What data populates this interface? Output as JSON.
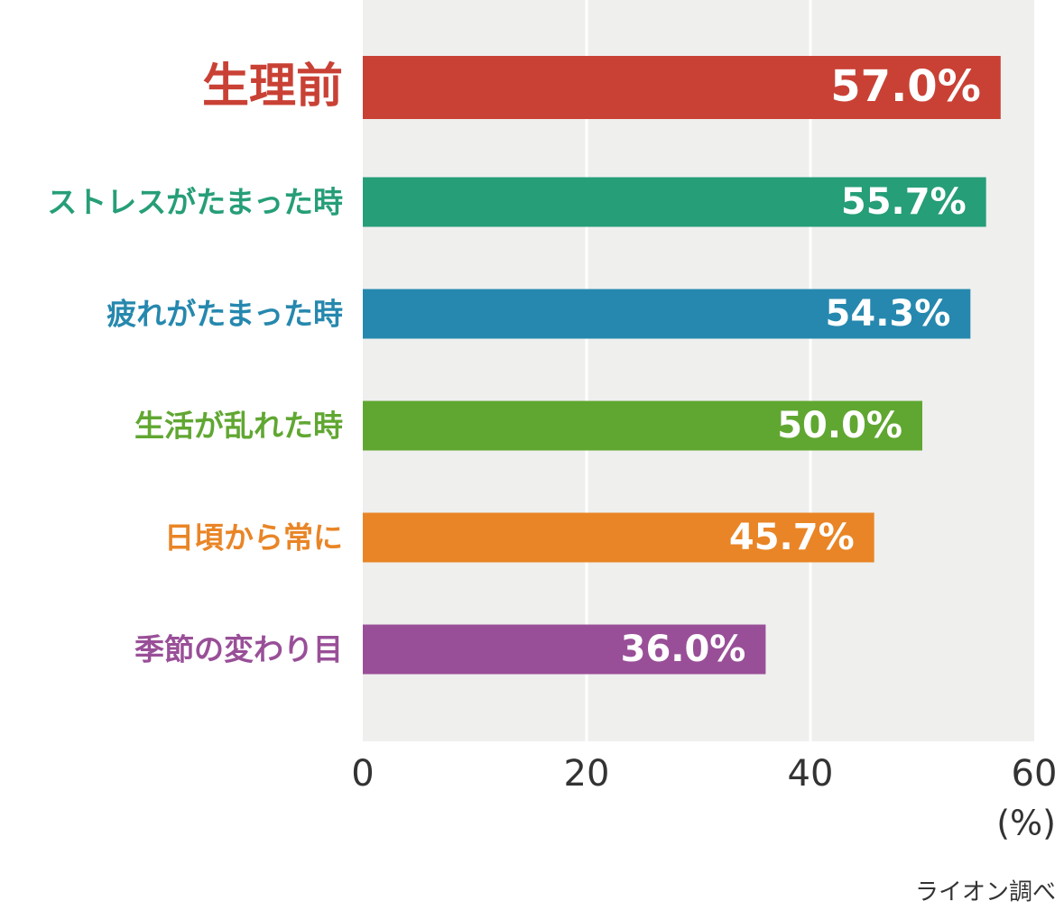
{
  "chart_data": {
    "type": "hbar",
    "categories": [
      "生理前",
      "ストレスがたまった時",
      "疲れがたまった時",
      "生活が乱れた時",
      "日頃から常に",
      "季節の変わり目"
    ],
    "values": [
      57.0,
      55.7,
      54.3,
      50.0,
      45.7,
      36.0
    ],
    "value_labels": [
      "57.0%",
      "55.7%",
      "54.3%",
      "50.0%",
      "45.7%",
      "36.0%"
    ],
    "colors": [
      "#c94135",
      "#269e78",
      "#2688ae",
      "#60a732",
      "#e98526",
      "#994f98"
    ],
    "xlim": [
      0,
      60
    ],
    "xticks": [
      0,
      20,
      40,
      60
    ],
    "grid": true,
    "unit_label": "(%)",
    "source": "ライオン調べ"
  }
}
